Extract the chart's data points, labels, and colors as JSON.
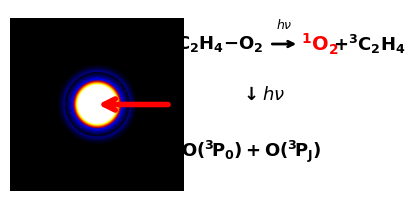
{
  "title_line1": "C_2H_4-O_2",
  "arrow_label": "h\\nu",
  "product_red": "^1O_2",
  "product_black": "+^3C_2H_4",
  "line2_arrow": "\\downarrow h\\nu",
  "line3": "O(^3P_0)+O(^3P_J)",
  "background_color": "#ffffff",
  "image_bg": "#000000",
  "ring_colors": {
    "white_center_r": 0.22,
    "yellow_ring_r": 0.265,
    "blue_outer_r": 0.47
  },
  "arrow_color": "#ff0000",
  "red_text_color": "#ff0000",
  "black_text_color": "#000000"
}
